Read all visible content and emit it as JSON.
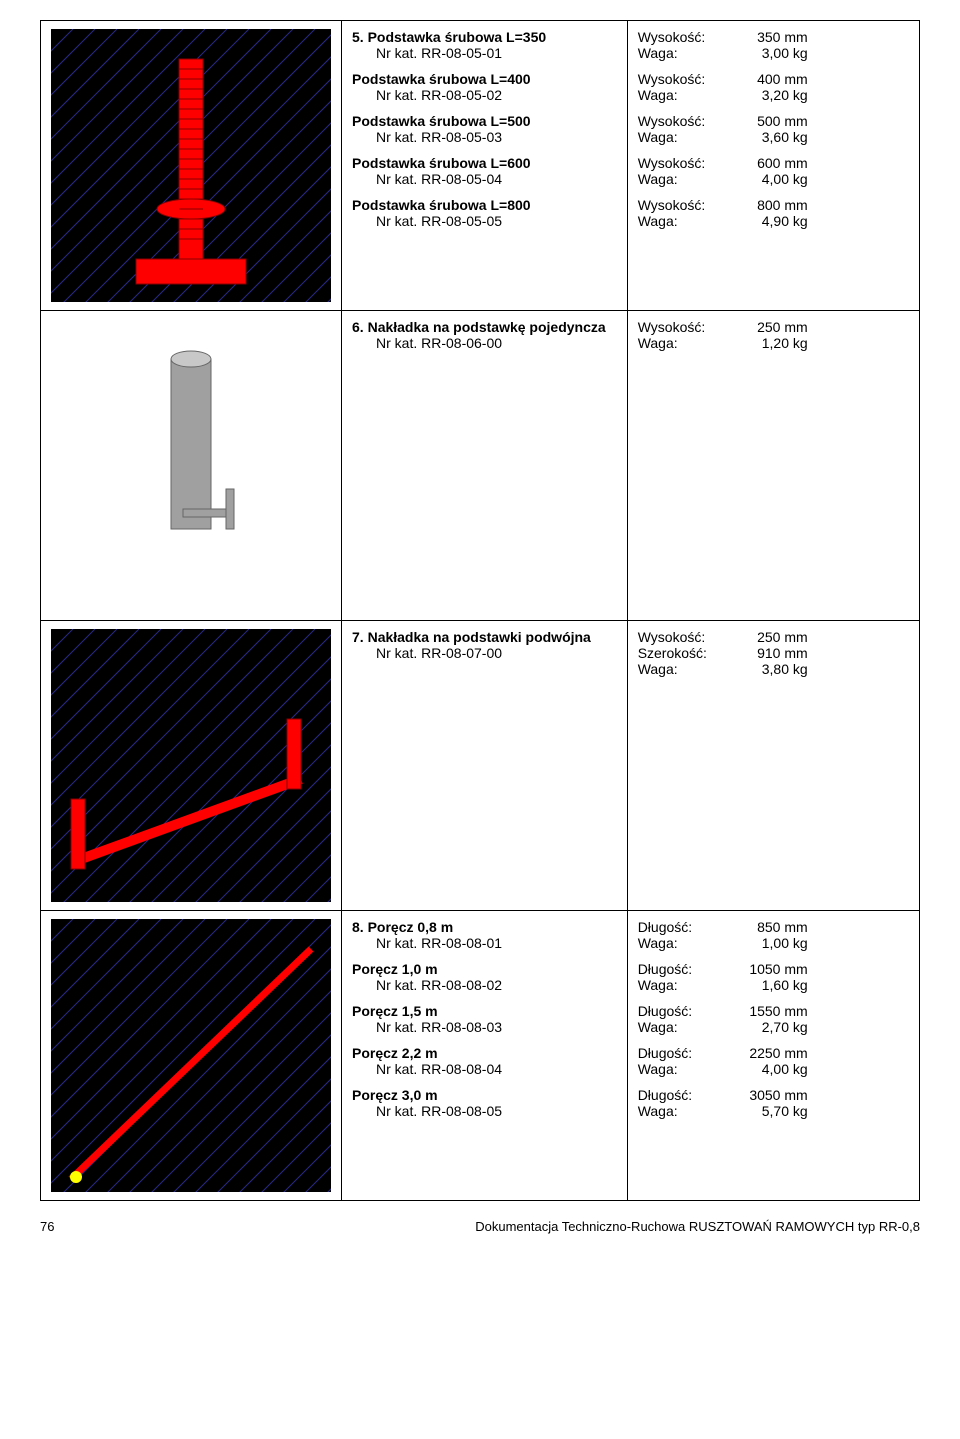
{
  "rows": [
    {
      "image": "base-jack",
      "items": [
        {
          "num": "5.",
          "title": "Podstawka śrubowa L=350",
          "sub": "Nr kat. RR-08-05-01",
          "specs": [
            {
              "l": "Wysokość:",
              "v": "350 mm"
            },
            {
              "l": "Waga:",
              "v": "3,00 kg"
            }
          ]
        },
        {
          "num": "",
          "title": "Podstawka śrubowa L=400",
          "sub": "Nr kat. RR-08-05-02",
          "specs": [
            {
              "l": "Wysokość:",
              "v": "400 mm"
            },
            {
              "l": "Waga:",
              "v": "3,20 kg"
            }
          ]
        },
        {
          "num": "",
          "title": "Podstawka śrubowa L=500",
          "sub": "Nr kat. RR-08-05-03",
          "specs": [
            {
              "l": "Wysokość:",
              "v": "500 mm"
            },
            {
              "l": "Waga:",
              "v": "3,60 kg"
            }
          ]
        },
        {
          "num": "",
          "title": "Podstawka śrubowa L=600",
          "sub": "Nr kat. RR-08-05-04",
          "specs": [
            {
              "l": "Wysokość:",
              "v": "600 mm"
            },
            {
              "l": "Waga:",
              "v": "4,00 kg"
            }
          ]
        },
        {
          "num": "",
          "title": "Podstawka śrubowa L=800",
          "sub": "Nr kat. RR-08-05-05",
          "specs": [
            {
              "l": "Wysokość:",
              "v": "800 mm"
            },
            {
              "l": "Waga:",
              "v": "4,90 kg"
            }
          ]
        }
      ]
    },
    {
      "image": "spigot",
      "items": [
        {
          "num": "6.",
          "title": "Nakładka na podstawkę pojedyncza",
          "sub": "Nr kat. RR-08-06-00",
          "specs": [
            {
              "l": "Wysokość:",
              "v": "250 mm"
            },
            {
              "l": "Waga:",
              "v": "1,20 kg"
            }
          ]
        }
      ]
    },
    {
      "image": "double-spigot",
      "items": [
        {
          "num": "7.",
          "title": "Nakładka na podstawki podwójna",
          "sub": "Nr kat. RR-08-07-00",
          "specs": [
            {
              "l": "Wysokość:",
              "v": "250 mm"
            },
            {
              "l": "Szerokość:",
              "v": "910 mm"
            },
            {
              "l": "Waga:",
              "v": "3,80 kg"
            }
          ]
        }
      ]
    },
    {
      "image": "rail",
      "items": [
        {
          "num": "8.",
          "title": "Poręcz 0,8 m",
          "sub": "Nr kat. RR-08-08-01",
          "specs": [
            {
              "l": "Długość:",
              "v": "850 mm"
            },
            {
              "l": "Waga:",
              "v": "1,00 kg"
            }
          ]
        },
        {
          "num": "",
          "title": "Poręcz 1,0 m",
          "sub": "Nr kat. RR-08-08-02",
          "specs": [
            {
              "l": "Długość:",
              "v": "1050 mm"
            },
            {
              "l": "Waga:",
              "v": "1,60 kg"
            }
          ]
        },
        {
          "num": "",
          "title": "Poręcz 1,5 m",
          "sub": "Nr kat. RR-08-08-03",
          "specs": [
            {
              "l": "Długość:",
              "v": "1550 mm"
            },
            {
              "l": "Waga:",
              "v": "2,70 kg"
            }
          ]
        },
        {
          "num": "",
          "title": "Poręcz 2,2 m",
          "sub": "Nr kat. RR-08-08-04",
          "specs": [
            {
              "l": "Długość:",
              "v": "2250 mm"
            },
            {
              "l": "Waga:",
              "v": "4,00 kg"
            }
          ]
        },
        {
          "num": "",
          "title": "Poręcz 3,0 m",
          "sub": "Nr kat. RR-08-08-05",
          "specs": [
            {
              "l": "Długość:",
              "v": "3050 mm"
            },
            {
              "l": "Waga:",
              "v": "5,70 kg"
            }
          ]
        }
      ]
    }
  ],
  "footer": {
    "page": "76",
    "doc": "Dokumentacja Techniczno-Ruchowa RUSZTOWAŃ RAMOWYCH typ RR-0,8"
  },
  "colors": {
    "hatch_bg": "#000000",
    "hatch_line": "#2a2a8a",
    "red": "#ff0000",
    "grey": "#a0a0a0",
    "yellow": "#ffff00"
  }
}
